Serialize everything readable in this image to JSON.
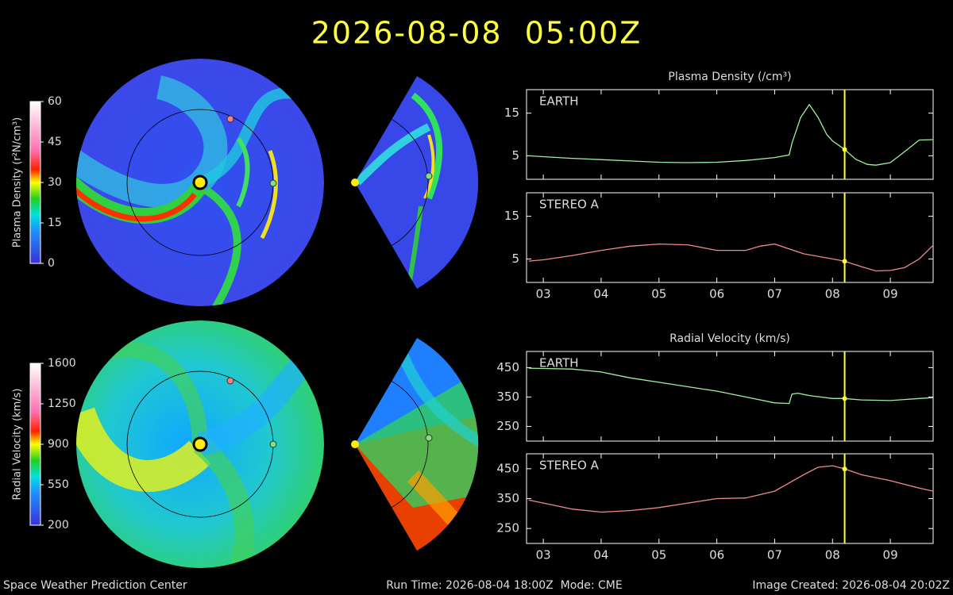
{
  "header": {
    "title": "2026-08-08  05:00Z"
  },
  "footer": {
    "left": "Space Weather Prediction Center",
    "middle": "Run Time: 2026-08-04 18:00Z  Mode: CME",
    "right": "Image Created: 2026-08-04 20:02Z"
  },
  "colorbars": [
    {
      "label": "Plasma Density (r²N/cm³)",
      "lim": [
        0,
        60
      ],
      "ticks": [
        0,
        15,
        30,
        45,
        60
      ]
    },
    {
      "label": "Radial Velocity (km/s)",
      "lim": [
        200,
        1600
      ],
      "ticks": [
        200,
        550,
        900,
        1250,
        1600
      ]
    }
  ],
  "chart_data": [
    {
      "type": "line",
      "title": "Plasma Density (/cm³)",
      "xlim": [
        2.71,
        9.74
      ],
      "ylim": [
        -0.5,
        20.5
      ],
      "yticks": [
        5,
        15
      ],
      "xticks": [
        3,
        4,
        5,
        6,
        7,
        8,
        9
      ],
      "time_marker": 8.21,
      "x": [
        2.75,
        3,
        3.5,
        4,
        4.5,
        5,
        5.5,
        6,
        6.5,
        7,
        7.25,
        7.3,
        7.45,
        7.6,
        7.75,
        7.9,
        8.0,
        8.2,
        8.4,
        8.6,
        8.75,
        9,
        9.25,
        9.5,
        9.74
      ],
      "series": [
        {
          "name": "EARTH",
          "color": "#9ef09e",
          "values": [
            5,
            4.8,
            4.4,
            4.1,
            3.8,
            3.5,
            3.4,
            3.5,
            3.9,
            4.6,
            5.2,
            8,
            14,
            17,
            14,
            10,
            8.5,
            6.6,
            4.2,
            3,
            2.8,
            3.4,
            6,
            8.7,
            8.8
          ]
        }
      ]
    },
    {
      "type": "line",
      "xlim": [
        2.71,
        9.74
      ],
      "ylim": [
        -0.5,
        20.5
      ],
      "yticks": [
        5,
        15
      ],
      "time_marker": 8.21,
      "xticks": [
        {
          "value": 3,
          "label": "03"
        },
        {
          "value": 4,
          "label": "04"
        },
        {
          "value": 5,
          "label": "05"
        },
        {
          "value": 6,
          "label": "06"
        },
        {
          "value": 7,
          "label": "07"
        },
        {
          "value": 8,
          "label": "08"
        },
        {
          "value": 9,
          "label": "09"
        }
      ],
      "x": [
        2.75,
        3,
        3.5,
        4,
        4.5,
        5,
        5.5,
        6,
        6.5,
        6.75,
        7,
        7.5,
        8,
        8.2,
        8.5,
        8.75,
        9,
        9.25,
        9.5,
        9.74
      ],
      "series": [
        {
          "name": "STEREO A",
          "color": "#f08a8a",
          "values": [
            4.5,
            4.8,
            5.8,
            7,
            8,
            8.5,
            8.3,
            7,
            7,
            8,
            8.5,
            6.2,
            5,
            4.5,
            3.2,
            2.2,
            2.3,
            3,
            5,
            8.2
          ]
        }
      ]
    },
    {
      "type": "line",
      "title": "Radial Velocity (km/s)",
      "xlim": [
        2.71,
        9.74
      ],
      "ylim": [
        200,
        505
      ],
      "yticks": [
        250,
        350,
        450
      ],
      "xticks": [
        3,
        4,
        5,
        6,
        7,
        8,
        9
      ],
      "time_marker": 8.21,
      "x": [
        2.75,
        3,
        3.5,
        4,
        4.5,
        5,
        5.5,
        6,
        6.5,
        7,
        7.25,
        7.3,
        7.4,
        7.6,
        8,
        8.2,
        8.5,
        9,
        9.5,
        9.74
      ],
      "series": [
        {
          "name": "EARTH",
          "color": "#9ef09e",
          "values": [
            448,
            447,
            445,
            435,
            415,
            400,
            385,
            370,
            350,
            330,
            328,
            360,
            363,
            355,
            345,
            345,
            340,
            338,
            345,
            348
          ]
        }
      ]
    },
    {
      "type": "line",
      "xlim": [
        2.71,
        9.74
      ],
      "ylim": [
        200,
        500
      ],
      "yticks": [
        250,
        350,
        450
      ],
      "time_marker": 8.21,
      "xticks": [
        {
          "value": 3,
          "label": "03"
        },
        {
          "value": 4,
          "label": "04"
        },
        {
          "value": 5,
          "label": "05"
        },
        {
          "value": 6,
          "label": "06"
        },
        {
          "value": 7,
          "label": "07"
        },
        {
          "value": 8,
          "label": "08"
        },
        {
          "value": 9,
          "label": "09"
        }
      ],
      "x": [
        2.75,
        3,
        3.5,
        4,
        4.5,
        5,
        5.5,
        6,
        6.5,
        7,
        7.5,
        7.75,
        8,
        8.2,
        8.5,
        9,
        9.5,
        9.74
      ],
      "series": [
        {
          "name": "STEREO A",
          "color": "#f08a8a",
          "values": [
            345,
            335,
            315,
            305,
            310,
            320,
            335,
            350,
            352,
            375,
            430,
            455,
            460,
            450,
            430,
            410,
            385,
            375
          ]
        }
      ]
    }
  ]
}
